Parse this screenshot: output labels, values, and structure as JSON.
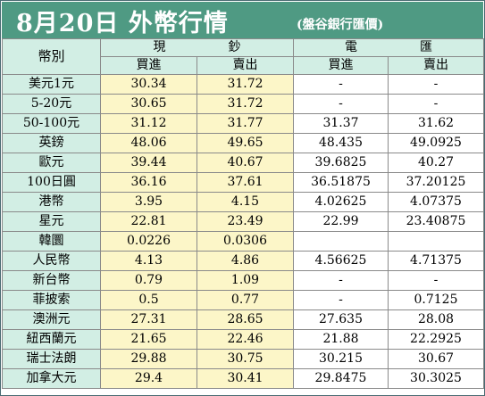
{
  "title": "8月20日 外幣行情",
  "subtitle": "(盤谷銀行匯價)",
  "header": {
    "currency": "幣別",
    "cash": "現　　　　　鈔",
    "wire": "電　　　　　匯",
    "buy": "買進",
    "sell": "賣出"
  },
  "rows": [
    {
      "name": "美元1元",
      "cash_buy": "30.34",
      "cash_sell": "31.72",
      "wire_buy": "-",
      "wire_sell": "-"
    },
    {
      "name": "5-20元",
      "cash_buy": "30.65",
      "cash_sell": "31.72",
      "wire_buy": "-",
      "wire_sell": "-"
    },
    {
      "name": "50-100元",
      "cash_buy": "31.12",
      "cash_sell": "31.77",
      "wire_buy": "31.37",
      "wire_sell": "31.62"
    },
    {
      "name": "英鎊",
      "cash_buy": "48.06",
      "cash_sell": "49.65",
      "wire_buy": "48.435",
      "wire_sell": "49.0925"
    },
    {
      "name": "歐元",
      "cash_buy": "39.44",
      "cash_sell": "40.67",
      "wire_buy": "39.6825",
      "wire_sell": "40.27"
    },
    {
      "name": "100日圓",
      "cash_buy": "36.16",
      "cash_sell": "37.61",
      "wire_buy": "36.51875",
      "wire_sell": "37.20125"
    },
    {
      "name": "港幣",
      "cash_buy": "3.95",
      "cash_sell": "4.15",
      "wire_buy": "4.02625",
      "wire_sell": "4.07375"
    },
    {
      "name": "星元",
      "cash_buy": "22.81",
      "cash_sell": "23.49",
      "wire_buy": "22.99",
      "wire_sell": "23.40875"
    },
    {
      "name": "韓圜",
      "cash_buy": "0.0226",
      "cash_sell": "0.0306",
      "wire_buy": "",
      "wire_sell": ""
    },
    {
      "name": "人民幣",
      "cash_buy": "4.13",
      "cash_sell": "4.86",
      "wire_buy": "4.56625",
      "wire_sell": "4.71375"
    },
    {
      "name": "新台幣",
      "cash_buy": "0.79",
      "cash_sell": "1.09",
      "wire_buy": "-",
      "wire_sell": "-"
    },
    {
      "name": "菲披索",
      "cash_buy": "0.5",
      "cash_sell": "0.77",
      "wire_buy": "-",
      "wire_sell": "0.7125"
    },
    {
      "name": "澳洲元",
      "cash_buy": "27.31",
      "cash_sell": "28.65",
      "wire_buy": "27.635",
      "wire_sell": "28.08"
    },
    {
      "name": "紐西蘭元",
      "cash_buy": "21.65",
      "cash_sell": "22.46",
      "wire_buy": "21.88",
      "wire_sell": "22.2925"
    },
    {
      "name": "瑞士法朗",
      "cash_buy": "29.88",
      "cash_sell": "30.75",
      "wire_buy": "30.215",
      "wire_sell": "30.67"
    },
    {
      "name": "加拿大元",
      "cash_buy": "29.4",
      "cash_sell": "30.41",
      "wire_buy": "29.8475",
      "wire_sell": "30.3025"
    }
  ],
  "colors": {
    "title_bg": "#4f9a83",
    "header_bg": "#d2eee4",
    "cash_bg": "#fcf6c8",
    "wire_bg": "#ffffff"
  }
}
